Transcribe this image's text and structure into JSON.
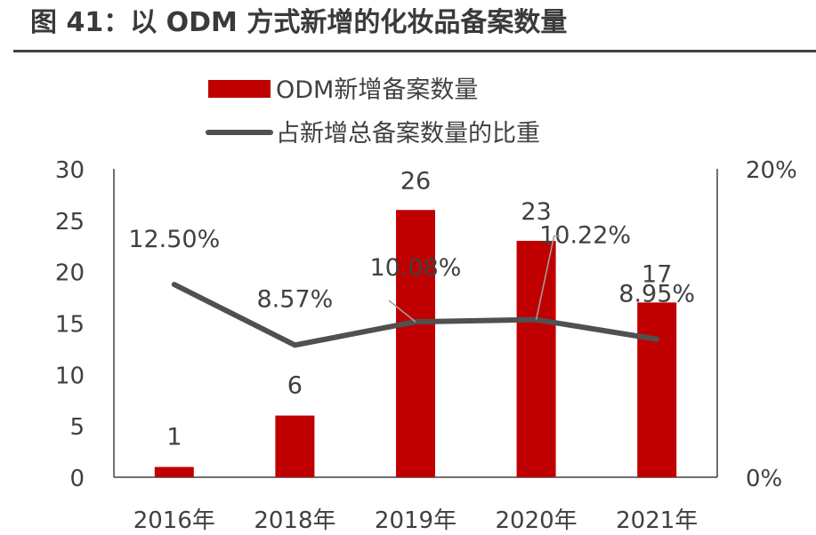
{
  "page": {
    "title": "图 41：以 ODM 方式新增的化妆品备案数量"
  },
  "colors": {
    "bar": "#c00000",
    "line": "#505050",
    "axis": "#404040",
    "text": "#404040"
  },
  "chart_data": {
    "type": "bar",
    "title": "",
    "categories": [
      "2016年",
      "2018年",
      "2019年",
      "2020年",
      "2021年"
    ],
    "series": [
      {
        "name": "ODM新增备案数量",
        "type": "bar",
        "axis": "left",
        "values": [
          1,
          6,
          26,
          23,
          17
        ],
        "labels": [
          "1",
          "6",
          "26",
          "23",
          "17"
        ]
      },
      {
        "name": "占新增总备案数量的比重",
        "type": "line",
        "axis": "right",
        "values": [
          12.5,
          8.57,
          10.08,
          10.22,
          8.95
        ],
        "labels": [
          "12.50%",
          "8.57%",
          "10.08%",
          "10.22%",
          "8.95%"
        ]
      }
    ],
    "y_left": {
      "min": 0,
      "max": 30,
      "ticks": [
        "0",
        "5",
        "10",
        "15",
        "20",
        "25",
        "30"
      ]
    },
    "y_right": {
      "min": 0,
      "max": 20,
      "ticks": [
        "0%",
        "20%"
      ]
    },
    "xlabel": "",
    "ylabel": "",
    "legend": "top-center",
    "grid": false
  }
}
